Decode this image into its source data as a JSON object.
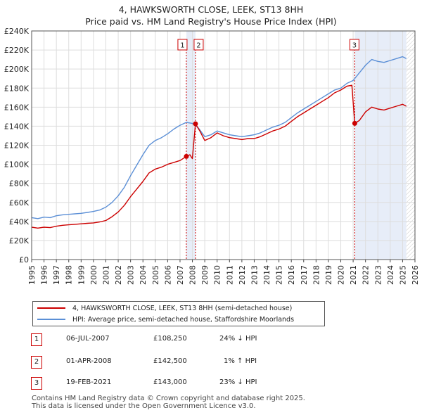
{
  "chart_data": {
    "type": "line",
    "title": "4, HAWKSWORTH CLOSE, LEEK, ST13 8HH",
    "subtitle": "Price paid vs. HM Land Registry's House Price Index (HPI)",
    "xlabel": "",
    "ylabel": "",
    "xlim": [
      1995,
      2026
    ],
    "ylim": [
      0,
      240000
    ],
    "x_ticks": [
      "1995",
      "1996",
      "1997",
      "1998",
      "1999",
      "2000",
      "2001",
      "2002",
      "2003",
      "2004",
      "2005",
      "2006",
      "2007",
      "2008",
      "2009",
      "2010",
      "2011",
      "2012",
      "2013",
      "2014",
      "2015",
      "2016",
      "2017",
      "2018",
      "2019",
      "2020",
      "2021",
      "2022",
      "2023",
      "2024",
      "2025",
      "2026"
    ],
    "y_ticks": [
      {
        "value": 0,
        "label": "£0"
      },
      {
        "value": 20000,
        "label": "£20K"
      },
      {
        "value": 40000,
        "label": "£40K"
      },
      {
        "value": 60000,
        "label": "£60K"
      },
      {
        "value": 80000,
        "label": "£80K"
      },
      {
        "value": 100000,
        "label": "£100K"
      },
      {
        "value": 120000,
        "label": "£120K"
      },
      {
        "value": 140000,
        "label": "£140K"
      },
      {
        "value": 160000,
        "label": "£160K"
      },
      {
        "value": 180000,
        "label": "£180K"
      },
      {
        "value": 200000,
        "label": "£200K"
      },
      {
        "value": 220000,
        "label": "£220K"
      },
      {
        "value": 240000,
        "label": "£240K"
      }
    ],
    "grid": true,
    "series": [
      {
        "name": "4, HAWKSWORTH CLOSE, LEEK, ST13 8HH (semi-detached house)",
        "color": "#cc0000",
        "points": [
          [
            1995.0,
            34000
          ],
          [
            1995.5,
            33000
          ],
          [
            1996.0,
            34000
          ],
          [
            1996.5,
            33500
          ],
          [
            1997.0,
            35000
          ],
          [
            1997.5,
            36000
          ],
          [
            1998.0,
            36500
          ],
          [
            1998.5,
            37000
          ],
          [
            1999.0,
            37500
          ],
          [
            1999.5,
            38000
          ],
          [
            2000.0,
            38500
          ],
          [
            2000.5,
            39500
          ],
          [
            2001.0,
            41000
          ],
          [
            2001.5,
            45000
          ],
          [
            2002.0,
            50000
          ],
          [
            2002.5,
            57000
          ],
          [
            2003.0,
            66000
          ],
          [
            2003.5,
            74000
          ],
          [
            2004.0,
            82000
          ],
          [
            2004.5,
            91000
          ],
          [
            2005.0,
            95000
          ],
          [
            2005.5,
            97000
          ],
          [
            2006.0,
            100000
          ],
          [
            2006.5,
            102000
          ],
          [
            2007.0,
            104000
          ],
          [
            2007.51,
            108250
          ],
          [
            2007.8,
            110000
          ],
          [
            2008.0,
            106000
          ],
          [
            2008.25,
            142500
          ],
          [
            2008.6,
            135000
          ],
          [
            2009.0,
            125000
          ],
          [
            2009.5,
            128000
          ],
          [
            2010.0,
            133000
          ],
          [
            2010.5,
            130000
          ],
          [
            2011.0,
            128000
          ],
          [
            2011.5,
            127000
          ],
          [
            2012.0,
            126000
          ],
          [
            2012.5,
            127000
          ],
          [
            2013.0,
            127000
          ],
          [
            2013.5,
            129000
          ],
          [
            2014.0,
            132000
          ],
          [
            2014.5,
            135000
          ],
          [
            2015.0,
            137000
          ],
          [
            2015.5,
            140000
          ],
          [
            2016.0,
            145000
          ],
          [
            2016.5,
            150000
          ],
          [
            2017.0,
            154000
          ],
          [
            2017.5,
            158000
          ],
          [
            2018.0,
            162000
          ],
          [
            2018.5,
            166000
          ],
          [
            2019.0,
            170000
          ],
          [
            2019.5,
            175000
          ],
          [
            2020.0,
            178000
          ],
          [
            2020.5,
            182000
          ],
          [
            2020.9,
            183000
          ],
          [
            2021.13,
            143000
          ],
          [
            2021.5,
            146000
          ],
          [
            2022.0,
            155000
          ],
          [
            2022.5,
            160000
          ],
          [
            2023.0,
            158000
          ],
          [
            2023.5,
            157000
          ],
          [
            2024.0,
            159000
          ],
          [
            2024.5,
            161000
          ],
          [
            2025.0,
            163000
          ],
          [
            2025.3,
            161000
          ]
        ]
      },
      {
        "name": "HPI: Average price, semi-detached house, Staffordshire Moorlands",
        "color": "#5b8fd6",
        "points": [
          [
            1995.0,
            44000
          ],
          [
            1995.5,
            43000
          ],
          [
            1996.0,
            44500
          ],
          [
            1996.5,
            44000
          ],
          [
            1997.0,
            46000
          ],
          [
            1997.5,
            47000
          ],
          [
            1998.0,
            47500
          ],
          [
            1998.5,
            48000
          ],
          [
            1999.0,
            48500
          ],
          [
            1999.5,
            49500
          ],
          [
            2000.0,
            50500
          ],
          [
            2000.5,
            52000
          ],
          [
            2001.0,
            55000
          ],
          [
            2001.5,
            60000
          ],
          [
            2002.0,
            67000
          ],
          [
            2002.5,
            76000
          ],
          [
            2003.0,
            88000
          ],
          [
            2003.5,
            99000
          ],
          [
            2004.0,
            110000
          ],
          [
            2004.5,
            120000
          ],
          [
            2005.0,
            125000
          ],
          [
            2005.5,
            128000
          ],
          [
            2006.0,
            132000
          ],
          [
            2006.5,
            137000
          ],
          [
            2007.0,
            141000
          ],
          [
            2007.5,
            144000
          ],
          [
            2008.0,
            143000
          ],
          [
            2008.5,
            138000
          ],
          [
            2009.0,
            129000
          ],
          [
            2009.5,
            131000
          ],
          [
            2010.0,
            135000
          ],
          [
            2010.5,
            133000
          ],
          [
            2011.0,
            131000
          ],
          [
            2011.5,
            130000
          ],
          [
            2012.0,
            129000
          ],
          [
            2012.5,
            130000
          ],
          [
            2013.0,
            131000
          ],
          [
            2013.5,
            133000
          ],
          [
            2014.0,
            136000
          ],
          [
            2014.5,
            139000
          ],
          [
            2015.0,
            141000
          ],
          [
            2015.5,
            144000
          ],
          [
            2016.0,
            149000
          ],
          [
            2016.5,
            154000
          ],
          [
            2017.0,
            158000
          ],
          [
            2017.5,
            162000
          ],
          [
            2018.0,
            166000
          ],
          [
            2018.5,
            170000
          ],
          [
            2019.0,
            174000
          ],
          [
            2019.5,
            178000
          ],
          [
            2020.0,
            180000
          ],
          [
            2020.5,
            185000
          ],
          [
            2021.0,
            188000
          ],
          [
            2021.5,
            196000
          ],
          [
            2022.0,
            204000
          ],
          [
            2022.5,
            210000
          ],
          [
            2023.0,
            208000
          ],
          [
            2023.5,
            207000
          ],
          [
            2024.0,
            209000
          ],
          [
            2024.5,
            211000
          ],
          [
            2025.0,
            213000
          ],
          [
            2025.3,
            211000
          ]
        ]
      }
    ],
    "transactions": [
      {
        "id": "1",
        "date": "06-JUL-2007",
        "x": 2007.51,
        "price_value": 108250,
        "price": "£108,250",
        "hpi": "24% ↓ HPI"
      },
      {
        "id": "2",
        "date": "01-APR-2008",
        "x": 2008.25,
        "price_value": 142500,
        "price": "£142,500",
        "hpi": "1% ↑ HPI"
      },
      {
        "id": "3",
        "date": "19-FEB-2021",
        "x": 2021.13,
        "price_value": 143000,
        "price": "£143,000",
        "hpi": "23% ↓ HPI"
      }
    ],
    "future_from": 2025.3,
    "legend": [
      {
        "label": "4, HAWKSWORTH CLOSE, LEEK, ST13 8HH (semi-detached house)",
        "color": "#cc0000"
      },
      {
        "label": "HPI: Average price, semi-detached house, Staffordshire Moorlands",
        "color": "#5b8fd6"
      }
    ]
  },
  "footer": {
    "line1": "Contains HM Land Registry data © Crown copyright and database right 2025.",
    "line2": "This data is licensed under the Open Government Licence v3.0."
  }
}
